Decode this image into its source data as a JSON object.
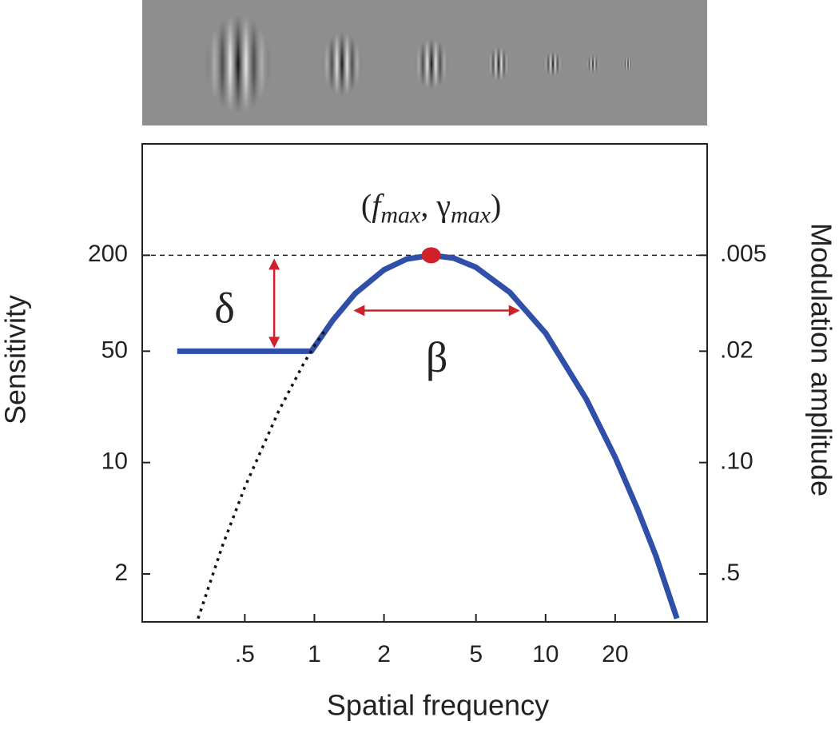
{
  "chart_data": {
    "type": "line",
    "xlabel": "Spatial frequency",
    "ylabel": "Sensitivity",
    "y2label": "Modulation amplitude",
    "xscale": "log",
    "yscale": "log",
    "xlim": [
      0.18,
      50
    ],
    "xticks": [
      {
        "value": 0.5,
        "label": ".5"
      },
      1,
      2,
      5,
      10,
      20
    ],
    "ylim": [
      1,
      1000
    ],
    "yticks": [
      2,
      10,
      50,
      200
    ],
    "y2lim": [
      1,
      0.001
    ],
    "y2ticks": [
      {
        "value": 0.5,
        "label": ".5"
      },
      {
        "value": 0.1,
        "label": ".10"
      },
      {
        "value": 0.02,
        "label": ".02"
      },
      {
        "value": 0.005,
        "label": ".005"
      }
    ],
    "series": [
      {
        "color": "#2f4fa8",
        "style": "solid",
        "x": [
          0.255,
          0.97,
          1.2,
          1.5,
          2,
          2.5,
          3.2,
          4,
          5,
          7,
          10,
          15,
          20,
          25,
          30,
          37
        ],
        "values": [
          50,
          50,
          78,
          115,
          162,
          189,
          200,
          192,
          168,
          117,
          65,
          25,
          10.8,
          5.1,
          2.6,
          1.05
        ]
      },
      {
        "color": "#111111",
        "style": "dotted",
        "x": [
          0.314,
          0.4,
          0.5,
          0.7,
          0.9,
          1.0,
          1.1
        ],
        "values": [
          1.05,
          3.0,
          7.0,
          21,
          42,
          54,
          66
        ]
      }
    ],
    "peak": {
      "x": 3.2,
      "value": 200,
      "color": "#d0202a",
      "label": [
        "(",
        "f",
        "max",
        ", ",
        "γ",
        "max",
        ")"
      ]
    },
    "reference_line": 200,
    "delta": {
      "label": "δ",
      "x": 0.67,
      "values": [
        50,
        200
      ]
    },
    "beta": {
      "label": "β",
      "value": 90,
      "x": [
        1.43,
        8.0
      ]
    }
  }
}
